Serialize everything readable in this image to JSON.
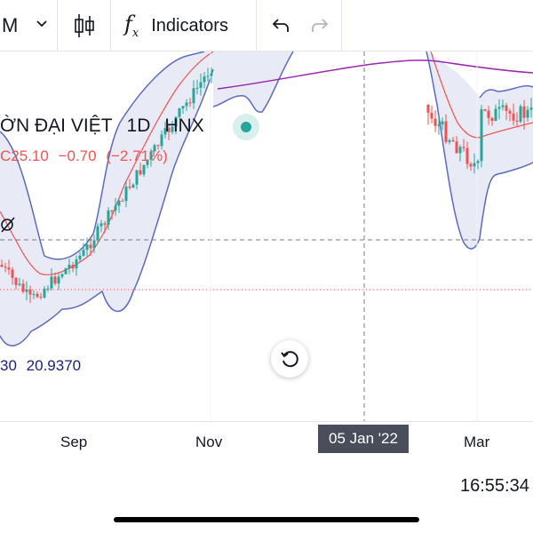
{
  "toolbar": {
    "interval_label": "M",
    "indicators_label": "Indicators",
    "icons": [
      "chevron-down-icon",
      "candles-icon",
      "fx-icon",
      "undo-icon",
      "redo-icon"
    ]
  },
  "legend": {
    "symbol_name": "ỜN ĐẠI VIỆT",
    "interval": "1D",
    "exchange": "HNX",
    "close_prefix": "C",
    "close": "25.10",
    "change": "−0.70",
    "change_pct": "(−2.71%)",
    "bb_value_1": "30",
    "bb_value_2": "20.9370"
  },
  "axis": {
    "x_labels": [
      "Sep",
      "Nov",
      "Mar"
    ],
    "crosshair_date": "05 Jan '22"
  },
  "status": {
    "clock": "16:55:34"
  },
  "colors": {
    "up": "#26a69a",
    "down": "#ef5350",
    "bollinger": "#5c6bc0",
    "bb_fill": "#e8eaf6",
    "basis": "#ef5350",
    "moving_average": "#9c27b0",
    "tooltip": "#4a4e5a"
  }
}
